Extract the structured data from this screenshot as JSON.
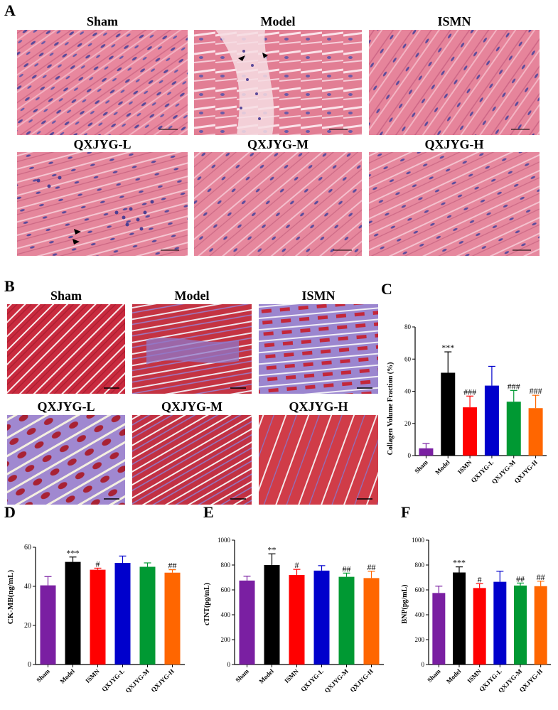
{
  "panels": {
    "A": {
      "label": "A",
      "titles": [
        "Sham",
        "Model",
        "ISMN",
        "QXJYG-L",
        "QXJYG-M",
        "QXJYG-H"
      ]
    },
    "B": {
      "label": "B",
      "titles": [
        "Sham",
        "Model",
        "ISMN",
        "QXJYG-L",
        "QXJYG-M",
        "QXJYG-H"
      ]
    },
    "C": {
      "label": "C"
    },
    "D": {
      "label": "D"
    },
    "E": {
      "label": "E"
    },
    "F": {
      "label": "F"
    }
  },
  "chart_data": [
    {
      "panel": "C",
      "type": "bar",
      "categories": [
        "Sham",
        "Model",
        "ISMN",
        "QXJYG-L",
        "QXJYG-M",
        "QXJYG-H"
      ],
      "values": [
        4.5,
        51.5,
        30,
        43.5,
        33.5,
        29.5
      ],
      "errors": [
        3,
        13,
        7,
        12,
        7,
        8
      ],
      "annotations": [
        "",
        "***",
        "###",
        "",
        "###",
        "###"
      ],
      "ylabel": "Collagen Volume Fraction (%)",
      "ylim": [
        0,
        80
      ],
      "yticks": [
        0,
        20,
        40,
        60,
        80
      ],
      "colors": [
        "#7a1fa2",
        "#000000",
        "#ff0000",
        "#0000cc",
        "#009933",
        "#ff6600"
      ]
    },
    {
      "panel": "D",
      "type": "bar",
      "categories": [
        "Sham",
        "Model",
        "ISMN",
        "QXJYG-L",
        "QXJYG-M",
        "QXJYG-H"
      ],
      "values": [
        40.5,
        52.5,
        48.5,
        52,
        50,
        47
      ],
      "errors": [
        4.5,
        2.5,
        0.8,
        3.5,
        2,
        1.5
      ],
      "annotations": [
        "",
        "***",
        "#",
        "",
        "",
        "##"
      ],
      "ylabel": "CK-MB(ng/mL)",
      "ylim": [
        0,
        60
      ],
      "yticks": [
        0,
        20,
        40,
        60
      ],
      "colors": [
        "#7a1fa2",
        "#000000",
        "#ff0000",
        "#0000cc",
        "#009933",
        "#ff6600"
      ]
    },
    {
      "panel": "E",
      "type": "bar",
      "categories": [
        "Sham",
        "Model",
        "ISMN",
        "QXJYG-L",
        "QXJYG-M",
        "QXJYG-H"
      ],
      "values": [
        675,
        800,
        720,
        755,
        705,
        695
      ],
      "errors": [
        35,
        90,
        45,
        40,
        30,
        55
      ],
      "annotations": [
        "",
        "**",
        "#",
        "",
        "##",
        "##"
      ],
      "ylabel": "cTNT(pg/mL)",
      "ylim": [
        0,
        1000
      ],
      "yticks": [
        0,
        200,
        400,
        600,
        800,
        1000
      ],
      "colors": [
        "#7a1fa2",
        "#000000",
        "#ff0000",
        "#0000cc",
        "#009933",
        "#ff6600"
      ]
    },
    {
      "panel": "F",
      "type": "bar",
      "categories": [
        "Sham",
        "Model",
        "ISMN",
        "QXJYG-L",
        "QXJYG-M",
        "QXJYG-H"
      ],
      "values": [
        575,
        740,
        615,
        665,
        635,
        630
      ],
      "errors": [
        55,
        45,
        35,
        85,
        20,
        40
      ],
      "annotations": [
        "",
        "***",
        "#",
        "",
        "##",
        "##"
      ],
      "ylabel": "BNP(pg/mL)",
      "ylim": [
        0,
        1000
      ],
      "yticks": [
        0,
        200,
        400,
        600,
        800,
        1000
      ],
      "colors": [
        "#7a1fa2",
        "#000000",
        "#ff0000",
        "#0000cc",
        "#009933",
        "#ff6600"
      ]
    }
  ]
}
